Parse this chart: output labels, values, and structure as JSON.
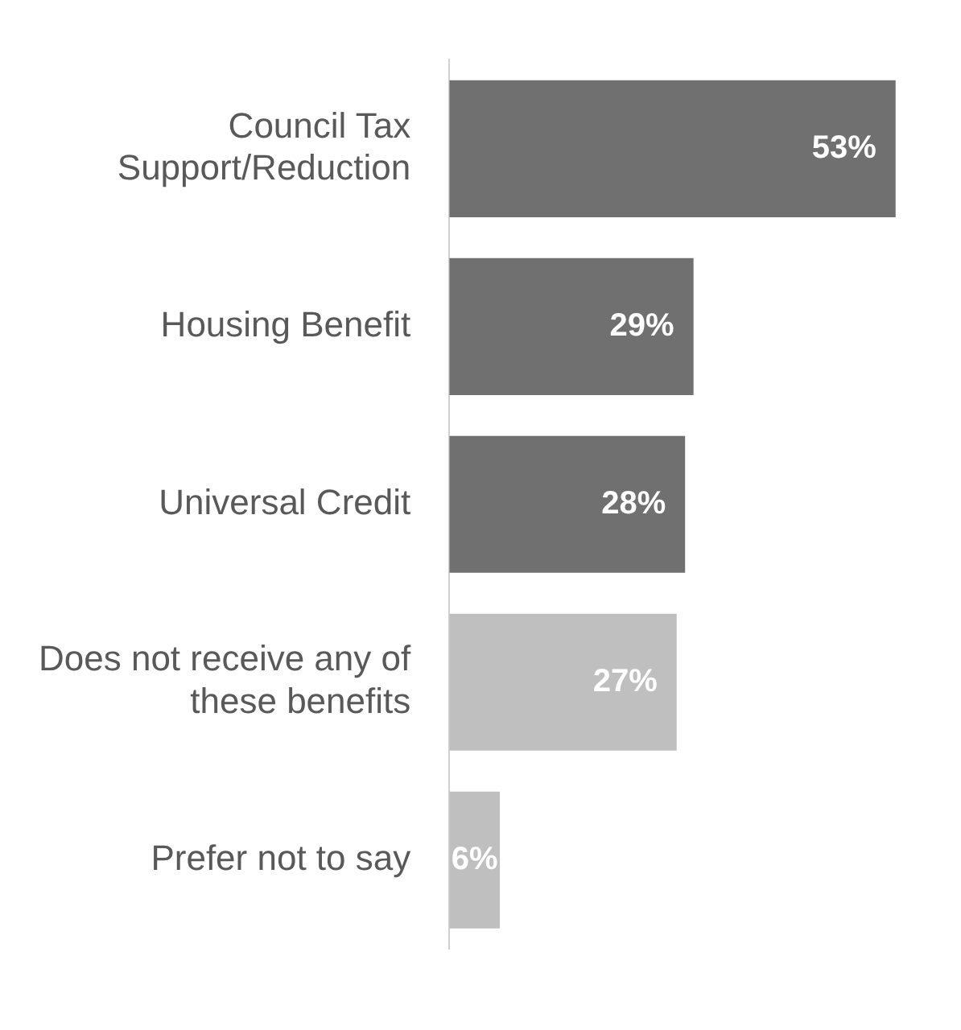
{
  "chart_data": {
    "type": "bar",
    "orientation": "horizontal",
    "categories": [
      "Council Tax Support/Reduction",
      "Housing Benefit",
      "Universal Credit",
      "Does not receive any of these benefits",
      "Prefer not to say"
    ],
    "values": [
      53,
      29,
      28,
      27,
      6
    ],
    "colors": [
      "#707070",
      "#707070",
      "#707070",
      "#bfbfbf",
      "#bfbfbf"
    ],
    "value_labels": [
      "53%",
      "29%",
      "28%",
      "27%",
      "6%"
    ],
    "legend": false
  }
}
